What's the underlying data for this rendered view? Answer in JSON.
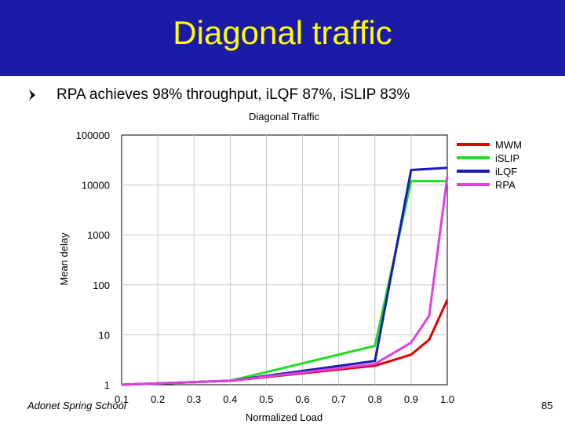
{
  "slide": {
    "title": "Diagonal traffic",
    "bullet": "RPA achieves 98% throughput, iLQF 87%, iSLIP 83%",
    "footer_left": "Adonet Spring School",
    "page_number": "85",
    "colors": {
      "title_bar": "#1b1ba8",
      "title_text": "#ffff00"
    }
  },
  "chart_data": {
    "type": "line",
    "title": "Diagonal Traffic",
    "xlabel": "Normalized Load",
    "ylabel": "Mean delay",
    "x_ticks": [
      "0.1",
      "0.2",
      "0.3",
      "0.4",
      "0.5",
      "0.6",
      "0.7",
      "0.8",
      "0.9",
      "1.0"
    ],
    "y_ticks": [
      "1",
      "10",
      "100",
      "1000",
      "10000",
      "100000"
    ],
    "xlim": [
      0.1,
      1.0
    ],
    "ylim": [
      1,
      100000
    ],
    "y_scale": "log",
    "grid": true,
    "legend_position": "top-right",
    "series": [
      {
        "name": "MWM",
        "color": "#e00000",
        "x": [
          0.1,
          0.4,
          0.8,
          0.9,
          0.95,
          1.0
        ],
        "y": [
          1,
          1.2,
          2.4,
          4,
          8,
          50
        ]
      },
      {
        "name": "iSLIP",
        "color": "#22dd22",
        "x": [
          0.1,
          0.4,
          0.8,
          0.9,
          0.95,
          1.0
        ],
        "y": [
          1,
          1.2,
          6,
          12000,
          12000,
          12000
        ]
      },
      {
        "name": "iLQF",
        "color": "#1a1ab4",
        "x": [
          0.1,
          0.4,
          0.8,
          0.9,
          0.95,
          1.0
        ],
        "y": [
          1,
          1.2,
          3,
          20000,
          21000,
          22000
        ]
      },
      {
        "name": "RPA",
        "color": "#e040e0",
        "x": [
          0.1,
          0.4,
          0.8,
          0.9,
          0.95,
          1.0
        ],
        "y": [
          1,
          1.2,
          2.6,
          7,
          24,
          15000
        ]
      }
    ]
  }
}
